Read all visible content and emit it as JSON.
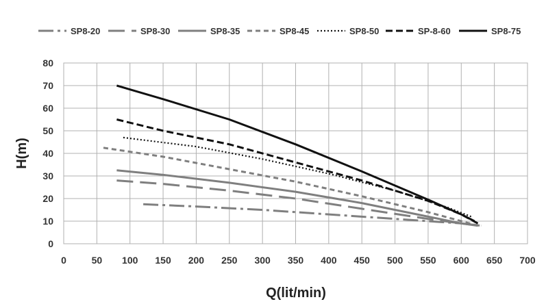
{
  "chart_data": {
    "type": "line",
    "xlabel": "Q(lit/min)",
    "ylabel": "H(m)",
    "xlim": [
      0,
      700
    ],
    "ylim": [
      0,
      80
    ],
    "x_ticks": [
      0,
      50,
      100,
      150,
      200,
      250,
      300,
      350,
      400,
      450,
      500,
      550,
      600,
      650,
      700
    ],
    "y_ticks": [
      0,
      10,
      20,
      30,
      40,
      50,
      60,
      70,
      80
    ],
    "grid": true,
    "legend_position": "top",
    "series": [
      {
        "name": "SP8-20",
        "color": "#7f7f7f",
        "dash": "dash-dot",
        "points": [
          [
            120,
            17.5
          ],
          [
            200,
            16.5
          ],
          [
            300,
            15
          ],
          [
            400,
            13
          ],
          [
            500,
            11
          ],
          [
            600,
            9
          ],
          [
            630,
            8
          ]
        ]
      },
      {
        "name": "SP8-30",
        "color": "#7f7f7f",
        "dash": "long-dash",
        "points": [
          [
            80,
            28
          ],
          [
            150,
            26.5
          ],
          [
            250,
            23.5
          ],
          [
            350,
            20
          ],
          [
            450,
            15.5
          ],
          [
            550,
            11
          ],
          [
            600,
            9
          ],
          [
            630,
            8
          ]
        ]
      },
      {
        "name": "SP8-35",
        "color": "#7f7f7f",
        "dash": "solid",
        "points": [
          [
            80,
            32.5
          ],
          [
            150,
            30.5
          ],
          [
            250,
            27
          ],
          [
            350,
            23
          ],
          [
            450,
            18
          ],
          [
            550,
            12
          ],
          [
            600,
            9
          ],
          [
            625,
            8
          ]
        ]
      },
      {
        "name": "SP8-45",
        "color": "#7f7f7f",
        "dash": "short-dash",
        "points": [
          [
            60,
            42.5
          ],
          [
            150,
            38.5
          ],
          [
            250,
            33
          ],
          [
            350,
            27.5
          ],
          [
            450,
            21
          ],
          [
            550,
            14
          ],
          [
            600,
            10
          ],
          [
            625,
            8
          ]
        ]
      },
      {
        "name": "SP8-50",
        "color": "#111111",
        "dash": "dot",
        "points": [
          [
            90,
            47
          ],
          [
            200,
            43
          ],
          [
            300,
            37.5
          ],
          [
            400,
            31
          ],
          [
            500,
            23.5
          ],
          [
            580,
            16
          ],
          [
            615,
            12
          ]
        ]
      },
      {
        "name": "SP-8-60",
        "color": "#111111",
        "dash": "dash",
        "points": [
          [
            80,
            55
          ],
          [
            150,
            50
          ],
          [
            250,
            44
          ],
          [
            350,
            36
          ],
          [
            450,
            28
          ],
          [
            550,
            19
          ],
          [
            600,
            13
          ],
          [
            625,
            9
          ]
        ]
      },
      {
        "name": "SP8-75",
        "color": "#111111",
        "dash": "solid",
        "points": [
          [
            80,
            70
          ],
          [
            150,
            64
          ],
          [
            250,
            55
          ],
          [
            350,
            44
          ],
          [
            450,
            32
          ],
          [
            550,
            19.5
          ],
          [
            600,
            13
          ],
          [
            620,
            10
          ]
        ]
      }
    ]
  }
}
